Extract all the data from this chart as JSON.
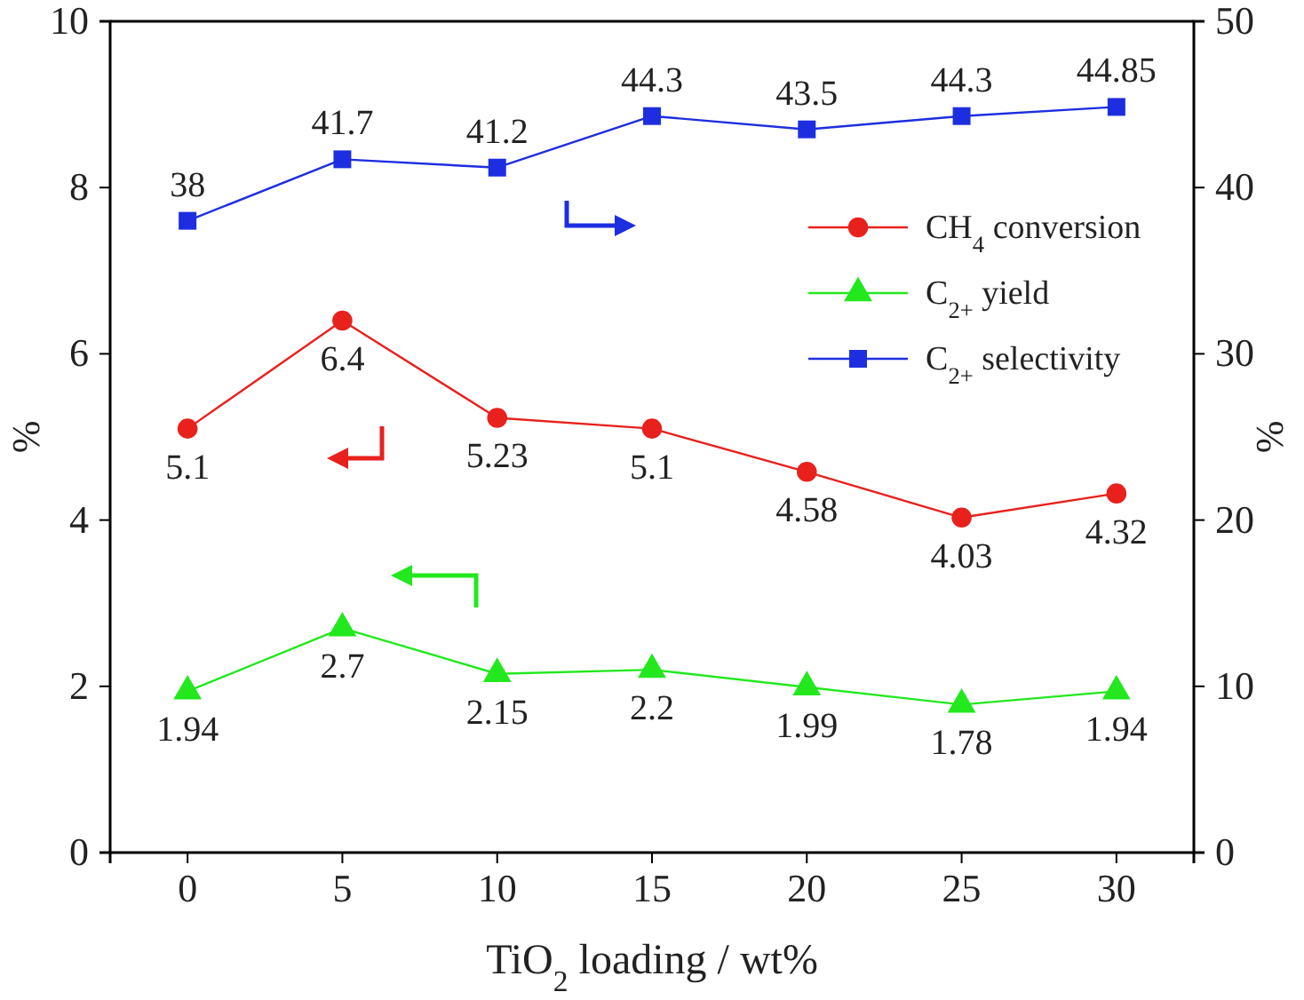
{
  "chart_data": {
    "type": "line",
    "xlabel": "TiO$_{2}$ loading / wt%",
    "ylabel": "%",
    "y2label": "%",
    "x": [
      0,
      5,
      10,
      15,
      20,
      25,
      30
    ],
    "xlim": [
      -2.5,
      32.5
    ],
    "xticks": [
      0,
      5,
      10,
      15,
      20,
      25,
      30
    ],
    "ylim": [
      0,
      10
    ],
    "yticks": [
      0,
      2,
      4,
      6,
      8,
      10
    ],
    "y2lim": [
      0,
      50
    ],
    "y2ticks": [
      0,
      10,
      20,
      30,
      40,
      50
    ],
    "series": [
      {
        "name": "CH$_{4}$ conversion",
        "color": "#e8211d",
        "marker": "circle",
        "values": [
          5.1,
          6.4,
          5.23,
          5.1,
          4.58,
          4.03,
          4.32
        ]
      },
      {
        "name": "C$_{2+}$  yield",
        "color": "#22e81d",
        "marker": "triangle",
        "values": [
          1.94,
          2.7,
          2.15,
          2.2,
          1.99,
          1.78,
          1.94
        ]
      },
      {
        "name": "C$_{2+}$  selectivity",
        "color": "#1d2ee0",
        "marker": "square",
        "axis": "y2",
        "values": [
          38,
          41.7,
          41.2,
          44.3,
          43.5,
          44.3,
          44.85
        ]
      }
    ],
    "data_labels": true,
    "legend": "top right",
    "grid": false
  }
}
